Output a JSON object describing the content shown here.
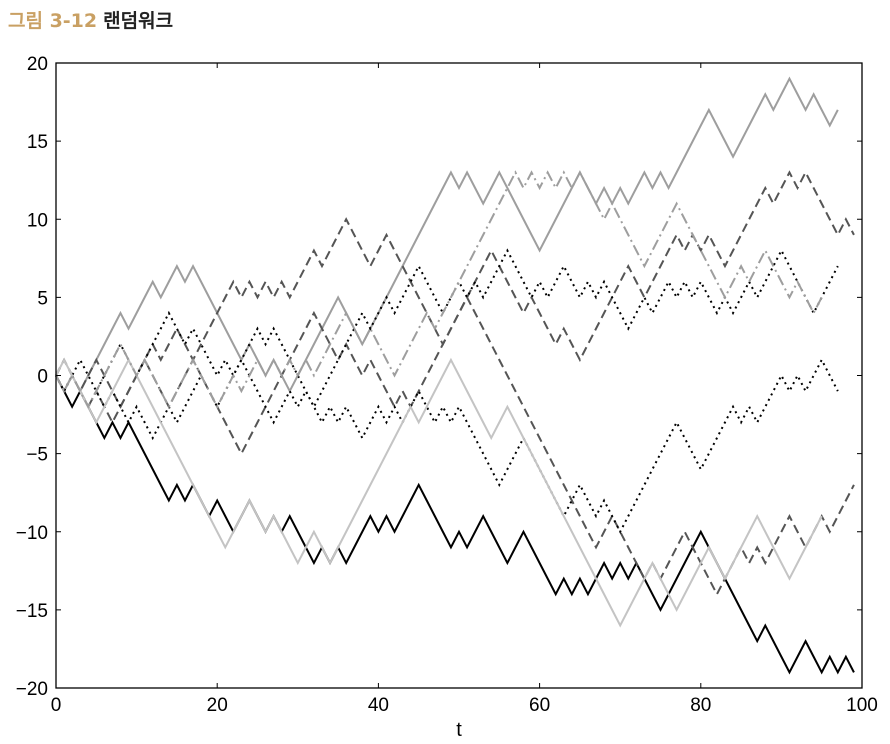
{
  "caption": {
    "number": "그림 3-12",
    "title": "랜덤워크"
  },
  "chart_data": {
    "type": "line",
    "title": "",
    "xlabel": "t",
    "ylabel": "",
    "xlim": [
      0,
      100
    ],
    "ylim": [
      -20,
      20
    ],
    "xticks": [
      "0",
      "20",
      "40",
      "60",
      "80",
      "100"
    ],
    "yticks": [
      "20",
      "15",
      "10",
      "5",
      "0",
      "−5",
      "−10",
      "−15",
      "−20"
    ],
    "grid": false,
    "series": [
      {
        "color": "#000000",
        "dash": "solid",
        "values": [
          0,
          -1,
          -2,
          -1,
          -2,
          -3,
          -4,
          -3,
          -4,
          -3,
          -4,
          -5,
          -6,
          -7,
          -8,
          -7,
          -8,
          -7,
          -8,
          -9,
          -8,
          -9,
          -10,
          -9,
          -8,
          -9,
          -10,
          -9,
          -10,
          -9,
          -10,
          -11,
          -12,
          -11,
          -12,
          -11,
          -12,
          -11,
          -10,
          -9,
          -10,
          -9,
          -10,
          -9,
          -8,
          -7,
          -8,
          -9,
          -10,
          -11,
          -10,
          -11,
          -10,
          -9,
          -10,
          -11,
          -12,
          -11,
          -10,
          -11,
          -12,
          -13,
          -14,
          -13,
          -14,
          -13,
          -14,
          -13,
          -12,
          -13,
          -12,
          -13,
          -12,
          -13,
          -14,
          -15,
          -14,
          -13,
          -12,
          -11,
          -10,
          -11,
          -12,
          -13,
          -14,
          -15,
          -16,
          -17,
          -16,
          -17,
          -18,
          -19,
          -18,
          -17,
          -18,
          -19,
          -18,
          -19,
          -18,
          -19
        ]
      },
      {
        "color": "#9e9e9e",
        "dash": "solid",
        "values": [
          0,
          -1,
          0,
          -1,
          0,
          1,
          2,
          3,
          4,
          3,
          4,
          5,
          6,
          5,
          6,
          7,
          6,
          7,
          6,
          5,
          4,
          3,
          2,
          1,
          2,
          1,
          0,
          1,
          0,
          -1,
          0,
          1,
          2,
          3,
          4,
          5,
          4,
          3,
          2,
          3,
          4,
          5,
          6,
          7,
          8,
          9,
          10,
          11,
          12,
          13,
          12,
          13,
          12,
          11,
          12,
          13,
          12,
          11,
          10,
          9,
          8,
          9,
          10,
          11,
          12,
          13,
          12,
          11,
          12,
          11,
          12,
          11,
          12,
          13,
          12,
          13,
          12,
          13,
          14,
          15,
          16,
          17,
          16,
          15,
          14,
          15,
          16,
          17,
          18,
          17,
          18,
          19,
          18,
          17,
          18,
          17,
          16,
          17
        ]
      },
      {
        "color": "#555555",
        "dash": "dash",
        "values": [
          0,
          1,
          0,
          -1,
          0,
          1,
          0,
          -1,
          -2,
          -1,
          0,
          1,
          2,
          1,
          2,
          3,
          2,
          1,
          0,
          -1,
          -2,
          -3,
          -4,
          -5,
          -4,
          -3,
          -2,
          -1,
          0,
          1,
          2,
          3,
          4,
          3,
          2,
          1,
          2,
          1,
          0,
          1,
          0,
          -1,
          -2,
          -1,
          -2,
          -1,
          0,
          1,
          2,
          3,
          4,
          5,
          4,
          3,
          2,
          1,
          0,
          -1,
          -2,
          -3,
          -4,
          -5,
          -6,
          -7,
          -8,
          -9,
          -10,
          -11,
          -10,
          -9,
          -10,
          -11,
          -12,
          -13,
          -12,
          -13,
          -12,
          -11,
          -10,
          -11,
          -12,
          -13,
          -14,
          -13,
          -12,
          -11,
          -12,
          -11,
          -12,
          -11,
          -10,
          -9,
          -10,
          -11,
          -10,
          -9,
          -10,
          -9,
          -8,
          -7
        ]
      },
      {
        "color": "#555555",
        "dash": "dash",
        "values": [
          0,
          1,
          0,
          -1,
          -2,
          -1,
          -2,
          -3,
          -2,
          -1,
          0,
          1,
          0,
          -1,
          -2,
          -1,
          0,
          1,
          2,
          3,
          4,
          5,
          6,
          5,
          6,
          5,
          6,
          5,
          6,
          5,
          6,
          7,
          8,
          7,
          8,
          9,
          10,
          9,
          8,
          7,
          8,
          9,
          8,
          7,
          6,
          5,
          4,
          3,
          2,
          3,
          4,
          5,
          6,
          7,
          8,
          7,
          6,
          5,
          4,
          5,
          4,
          3,
          2,
          3,
          2,
          1,
          2,
          3,
          4,
          5,
          6,
          7,
          6,
          5,
          6,
          7,
          8,
          9,
          8,
          9,
          8,
          9,
          8,
          7,
          8,
          9,
          10,
          11,
          12,
          11,
          12,
          13,
          12,
          13,
          12,
          11,
          10,
          9,
          10,
          9
        ]
      },
      {
        "color": "#000000",
        "dash": "dot",
        "values": [
          0,
          -1,
          0,
          1,
          0,
          -1,
          0,
          1,
          2,
          1,
          0,
          1,
          2,
          3,
          4,
          3,
          2,
          3,
          2,
          1,
          0,
          1,
          0,
          1,
          2,
          3,
          2,
          3,
          2,
          1,
          0,
          -1,
          -2,
          -1,
          0,
          1,
          2,
          3,
          4,
          3,
          4,
          5,
          4,
          5,
          6,
          7,
          6,
          5,
          4,
          5,
          6,
          5,
          6,
          5,
          6,
          7,
          8,
          7,
          6,
          5,
          6,
          5,
          6,
          7,
          6,
          5,
          6,
          5,
          6,
          5,
          4,
          3,
          4,
          5,
          4,
          5,
          6,
          5,
          6,
          5,
          6,
          5,
          4,
          5,
          4,
          5,
          6,
          5,
          6,
          7,
          8,
          7,
          6,
          5,
          4,
          5,
          6,
          7
        ]
      },
      {
        "color": "#000000",
        "dash": "dot",
        "values": [
          0,
          -1,
          0,
          -1,
          -2,
          -1,
          -2,
          -1,
          -2,
          -3,
          -2,
          -3,
          -4,
          -3,
          -2,
          -3,
          -2,
          -1,
          0,
          -1,
          -2,
          -1,
          0,
          1,
          0,
          -1,
          -2,
          -3,
          -2,
          -1,
          -2,
          -1,
          -2,
          -3,
          -2,
          -3,
          -2,
          -3,
          -4,
          -3,
          -2,
          -3,
          -2,
          -3,
          -2,
          -1,
          -2,
          -3,
          -2,
          -3,
          -2,
          -3,
          -4,
          -5,
          -6,
          -7,
          -6,
          -5,
          -4,
          -5,
          -6,
          -7,
          -8,
          -9,
          -8,
          -7,
          -8,
          -9,
          -8,
          -9,
          -10,
          -9,
          -8,
          -7,
          -6,
          -5,
          -4,
          -3,
          -4,
          -5,
          -6,
          -5,
          -4,
          -3,
          -2,
          -3,
          -2,
          -3,
          -2,
          -1,
          0,
          -1,
          0,
          -1,
          0,
          1,
          0,
          -1
        ]
      },
      {
        "color": "#c4c4c4",
        "dash": "solid",
        "values": [
          0,
          1,
          0,
          -1,
          -2,
          -3,
          -2,
          -1,
          0,
          1,
          0,
          -1,
          -2,
          -3,
          -4,
          -5,
          -6,
          -7,
          -8,
          -9,
          -10,
          -11,
          -10,
          -9,
          -8,
          -9,
          -10,
          -9,
          -10,
          -11,
          -12,
          -11,
          -10,
          -11,
          -12,
          -11,
          -10,
          -9,
          -8,
          -7,
          -6,
          -5,
          -4,
          -3,
          -2,
          -3,
          -2,
          -1,
          0,
          1,
          0,
          -1,
          -2,
          -3,
          -4,
          -3,
          -2,
          -3,
          -4,
          -5,
          -6,
          -7,
          -8,
          -9,
          -10,
          -11,
          -12,
          -13,
          -14,
          -15,
          -16,
          -15,
          -14,
          -13,
          -12,
          -13,
          -14,
          -15,
          -14,
          -13,
          -12,
          -11,
          -12,
          -13,
          -12,
          -11,
          -10,
          -9,
          -10,
          -11,
          -12,
          -13,
          -12,
          -11,
          -10,
          -9
        ]
      },
      {
        "color": "#9e9e9e",
        "dash": "dashdot",
        "values": [
          0,
          -1,
          0,
          -1,
          -2,
          -1,
          0,
          1,
          2,
          1,
          0,
          1,
          0,
          -1,
          -2,
          -1,
          0,
          1,
          0,
          -1,
          -2,
          -1,
          0,
          -1,
          0,
          1,
          0,
          1,
          0,
          1,
          0,
          1,
          0,
          1,
          2,
          3,
          4,
          3,
          2,
          3,
          2,
          1,
          0,
          1,
          2,
          3,
          4,
          3,
          4,
          5,
          6,
          7,
          8,
          9,
          10,
          11,
          12,
          13,
          12,
          13,
          12,
          13,
          12,
          13,
          12,
          13,
          12,
          11,
          10,
          11,
          10,
          9,
          8,
          7,
          8,
          9,
          10,
          11,
          10,
          9,
          8,
          7,
          6,
          5,
          6,
          7,
          6,
          7,
          8,
          7,
          6,
          5,
          6,
          5,
          4,
          5
        ]
      }
    ]
  }
}
